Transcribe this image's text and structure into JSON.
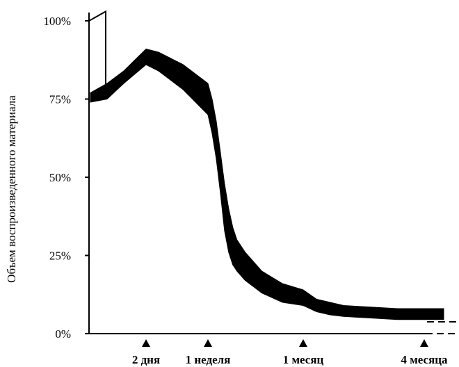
{
  "chart_data": {
    "type": "area",
    "title": "",
    "xlabel": "",
    "ylabel": "Объем воспроизведенного материала",
    "ylim": [
      0,
      100
    ],
    "y_ticks": [
      "0%",
      "25%",
      "50%",
      "75%",
      "100%"
    ],
    "y_tick_values": [
      0,
      25,
      50,
      75,
      100
    ],
    "x_scale": "time (days)",
    "x_markers": [
      {
        "label": "2 дня",
        "value": 2
      },
      {
        "label": "1 неделя",
        "value": 7
      },
      {
        "label": "1 месяц",
        "value": 30
      },
      {
        "label": "4 месяца",
        "value": 120
      }
    ],
    "initial_spike": {
      "from": 100,
      "peak": 103,
      "drop_to": 75
    },
    "series": [
      {
        "x_days": [
          0,
          0.6,
          1.2,
          2,
          3,
          4,
          5,
          6,
          7,
          8,
          9,
          10,
          11,
          12,
          13,
          14,
          16,
          18,
          20,
          25,
          30,
          40,
          50,
          60,
          80,
          100,
          120,
          130
        ],
        "upper": [
          77,
          80,
          84,
          91,
          90,
          88,
          86,
          83,
          80,
          75,
          68,
          58,
          48,
          40,
          34,
          30,
          26,
          23,
          20,
          16,
          14,
          11,
          10,
          9,
          8.5,
          8,
          8,
          8
        ],
        "lower": [
          74,
          75,
          80,
          86,
          84,
          81,
          78,
          74,
          70,
          64,
          56,
          45,
          33,
          26,
          22,
          20,
          17,
          15,
          13,
          10,
          9,
          7,
          6,
          5.5,
          5,
          4.5,
          4.5,
          4.5
        ]
      }
    ],
    "colors": {
      "band": "#000000",
      "axis": "#000000",
      "background": "#ffffff"
    },
    "grid": false,
    "legend": "none"
  }
}
